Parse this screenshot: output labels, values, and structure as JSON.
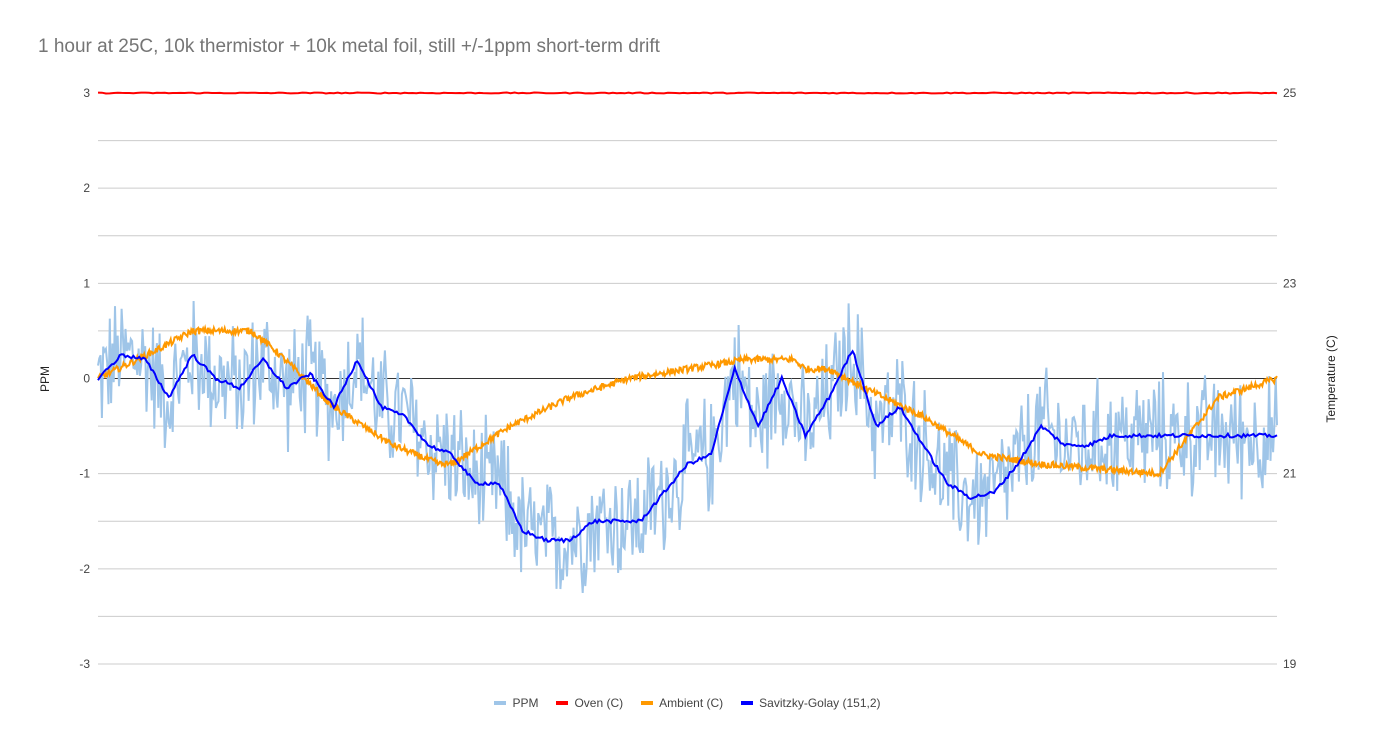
{
  "chart_data": {
    "type": "line",
    "title": "1 hour at 25C, 10k thermistor + 10k metal foil, still +/-1ppm short-term drift",
    "y_left_label": "PPM",
    "y_right_label": "Temperature (C)",
    "y_left_ticks": [
      "3",
      "2",
      "1",
      "0",
      "-1",
      "-2",
      "-3"
    ],
    "y_right_ticks": [
      "25",
      "23",
      "21",
      "19"
    ],
    "y_left_range": [
      -3,
      3
    ],
    "y_right_range": [
      19,
      25
    ],
    "grid": true,
    "legend_position": "bottom",
    "x_range": [
      0,
      1
    ],
    "series": [
      {
        "name": "PPM",
        "axis": "left",
        "color": "#9fc5e8",
        "noisy_around": "Savitzky-Golay (151,2)",
        "noise_amplitude": 0.5
      },
      {
        "name": "Oven (C)",
        "axis": "right",
        "color": "#ff0000",
        "x": [
          0,
          1
        ],
        "y": [
          25.0,
          25.0
        ]
      },
      {
        "name": "Ambient (C)",
        "axis": "right",
        "color": "#ff9900",
        "x": [
          0,
          0.05,
          0.08,
          0.1,
          0.13,
          0.15,
          0.2,
          0.25,
          0.27,
          0.29,
          0.3,
          0.35,
          0.4,
          0.45,
          0.5,
          0.55,
          0.59,
          0.6,
          0.62,
          0.65,
          0.7,
          0.75,
          0.8,
          0.8,
          0.9,
          0.95,
          1.0
        ],
        "y": [
          22.0,
          22.3,
          22.5,
          22.5,
          22.5,
          22.3,
          21.7,
          21.3,
          21.2,
          21.1,
          21.1,
          21.5,
          21.8,
          22.0,
          22.1,
          22.2,
          22.2,
          22.1,
          22.1,
          21.9,
          21.6,
          21.2,
          21.1,
          21.1,
          21.0,
          21.8,
          22.0
        ]
      },
      {
        "name": "Savitzky-Golay (151,2)",
        "axis": "left",
        "color": "#0000ff",
        "x": [
          0,
          0.02,
          0.04,
          0.06,
          0.08,
          0.1,
          0.12,
          0.14,
          0.16,
          0.18,
          0.2,
          0.22,
          0.24,
          0.26,
          0.28,
          0.3,
          0.32,
          0.34,
          0.36,
          0.38,
          0.4,
          0.42,
          0.44,
          0.46,
          0.48,
          0.5,
          0.52,
          0.54,
          0.56,
          0.58,
          0.6,
          0.62,
          0.64,
          0.66,
          0.68,
          0.7,
          0.72,
          0.74,
          0.76,
          0.78,
          0.8,
          0.82,
          0.84,
          0.86,
          0.88,
          0.9,
          0.92,
          0.94,
          0.96,
          0.98,
          1.0
        ],
        "y": [
          0.0,
          0.25,
          0.2,
          -0.2,
          0.25,
          0.0,
          -0.1,
          0.2,
          -0.1,
          0.05,
          -0.3,
          0.2,
          -0.3,
          -0.4,
          -0.7,
          -0.8,
          -1.1,
          -1.1,
          -1.6,
          -1.7,
          -1.7,
          -1.5,
          -1.5,
          -1.5,
          -1.2,
          -0.9,
          -0.8,
          0.1,
          -0.5,
          0.0,
          -0.6,
          -0.2,
          0.3,
          -0.5,
          -0.3,
          -0.7,
          -1.1,
          -1.25,
          -1.2,
          -0.9,
          -0.5,
          -0.7,
          -0.7,
          -0.6,
          -0.6,
          -0.6,
          -0.6,
          -0.6,
          -0.6,
          -0.6,
          -0.6
        ]
      }
    ]
  }
}
